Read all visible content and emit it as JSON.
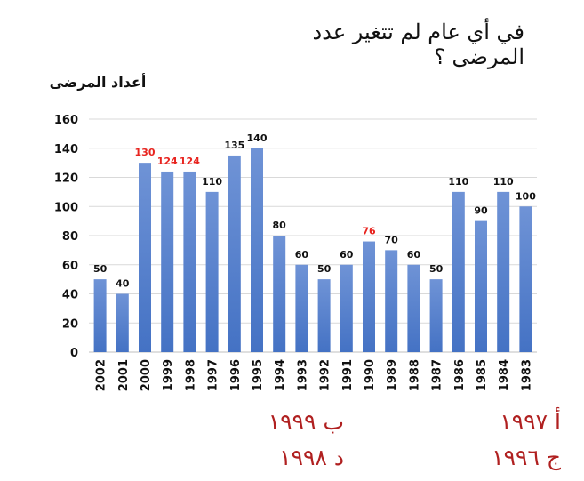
{
  "question": "في أي عام لم تتغير عدد المرضى ؟",
  "colors": {
    "bar": "#4472c4",
    "bar_light": "#6f93d6",
    "highlight": "#e8241f",
    "label": "#111111",
    "grid": "#d9d9d9",
    "option": "#b02020"
  },
  "options": {
    "a": "أ ١٩٩٧",
    "b": "ب ١٩٩٩",
    "c": "ج ١٩٩٦",
    "d": "د ١٩٩٨"
  },
  "chart_data": {
    "type": "bar",
    "title": "",
    "ylabel": "أعداد المرضى",
    "xlabel": "",
    "ylim": [
      0,
      160
    ],
    "yticks": [
      0,
      20,
      40,
      60,
      80,
      100,
      120,
      140,
      160
    ],
    "grid": true,
    "categories": [
      "2002",
      "2001",
      "2000",
      "1999",
      "1998",
      "1997",
      "1996",
      "1995",
      "1994",
      "1993",
      "1992",
      "1991",
      "1990",
      "1989",
      "1988",
      "1987",
      "1986",
      "1985",
      "1984",
      "1983"
    ],
    "values": [
      50,
      40,
      130,
      124,
      124,
      110,
      135,
      140,
      80,
      60,
      50,
      60,
      76,
      70,
      60,
      50,
      110,
      90,
      110,
      100
    ],
    "highlighted_labels": [
      "2000",
      "1999",
      "1998",
      "1990"
    ]
  }
}
